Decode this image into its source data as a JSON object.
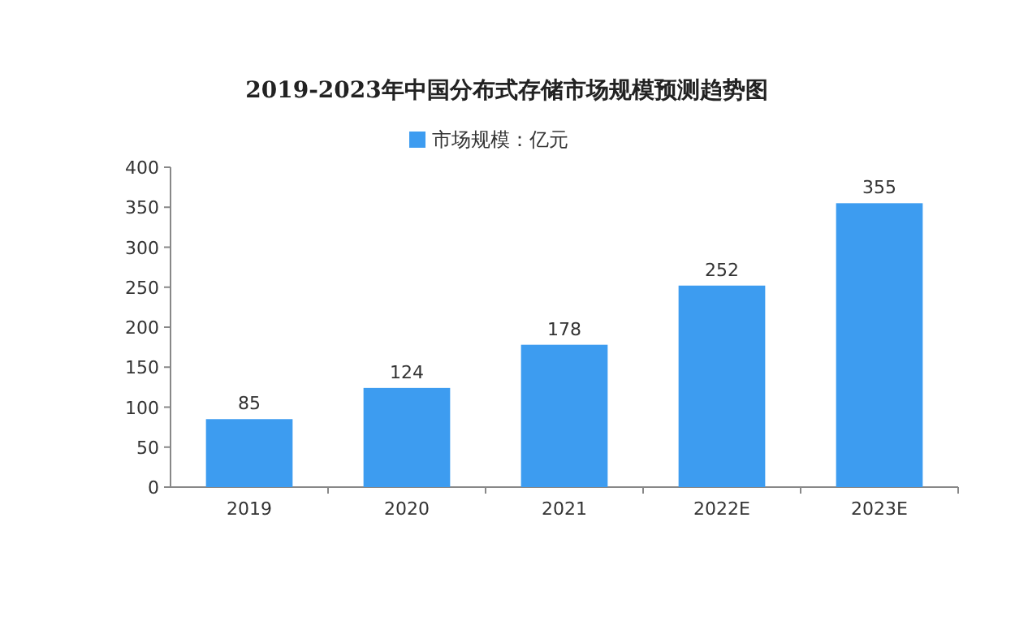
{
  "chart_data": {
    "type": "bar",
    "title": "2019-2023年中国分布式存储市场规模预测趋势图",
    "categories": [
      "2019",
      "2020",
      "2021",
      "2022E",
      "2023E"
    ],
    "series": [
      {
        "name": "市场规模：亿元",
        "color": "#3d9cf0",
        "values": [
          85,
          124,
          178,
          252,
          355
        ]
      }
    ],
    "ylim": [
      0,
      400
    ],
    "yticks": [
      0,
      50,
      100,
      150,
      200,
      250,
      300,
      350,
      400
    ],
    "data_labels": true,
    "legend": "top"
  }
}
